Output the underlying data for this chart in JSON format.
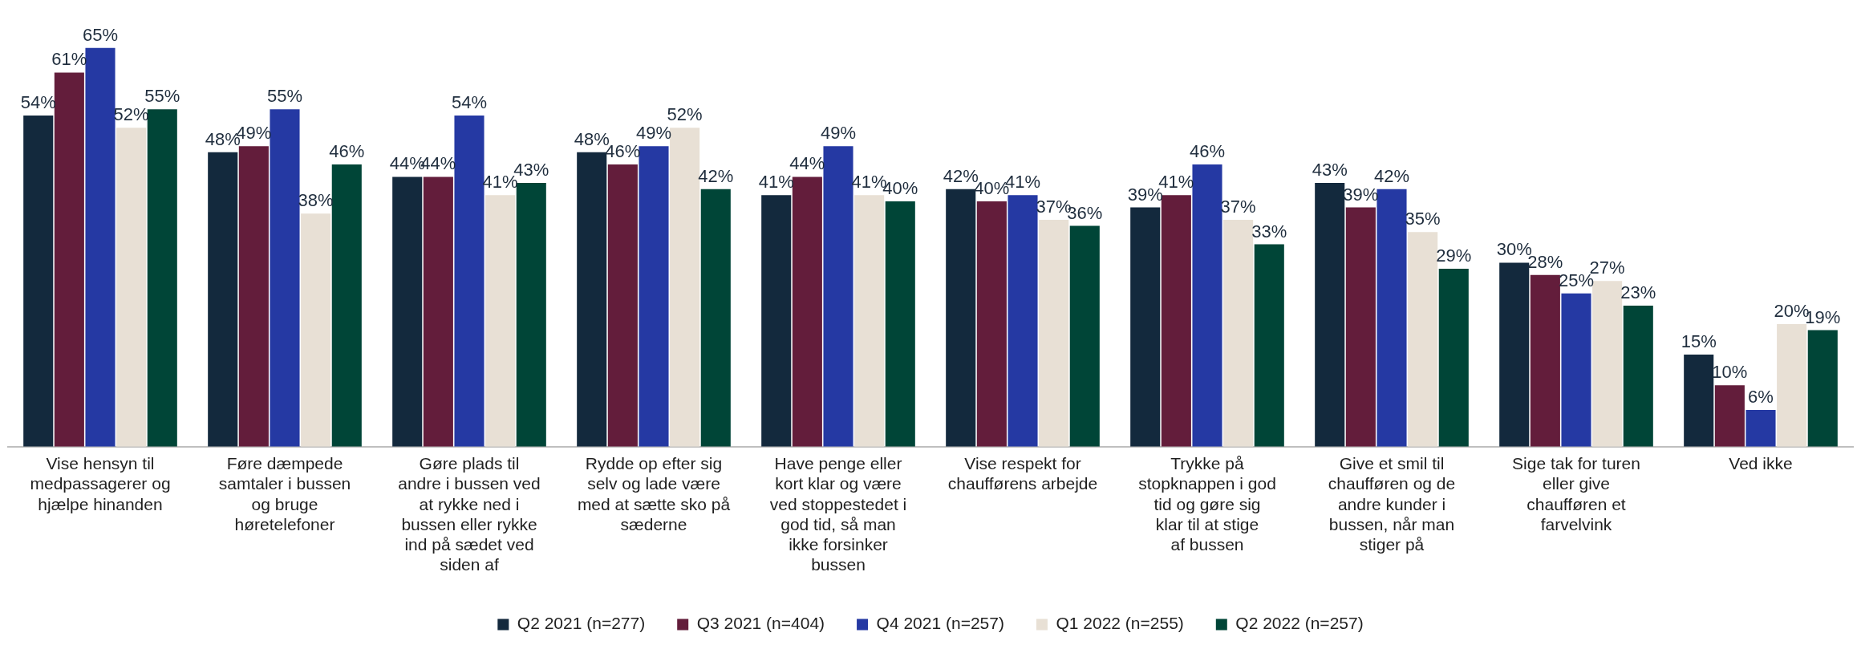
{
  "chart_data": {
    "type": "bar",
    "categories": [
      "Vise hensyn til medpassagerer og hjælpe hinanden",
      "Føre dæmpede samtaler i bussen og bruge høretelefoner",
      "Gøre plads til andre i bussen ved at rykke ned i bussen eller rykke ind på sædet ved siden af",
      "Rydde op efter sig selv og lade være med at sætte sko på sæderne",
      "Have penge eller kort klar og være ved stoppestedet i god tid, så man ikke forsinker bussen",
      "Vise respekt for chaufførens arbejde",
      "Trykke på stopknappen i god tid og gøre sig klar til at stige af bussen",
      "Give et smil til chaufføren og de andre kunder i bussen, når man stiger på",
      "Sige tak for turen eller give chaufføren et farvelvink",
      "Ved ikke"
    ],
    "series": [
      {
        "name": "Q2 2021 (n=277)",
        "color": "#13293d",
        "values": [
          54,
          48,
          44,
          48,
          41,
          42,
          39,
          43,
          30,
          15
        ],
        "value_labels": [
          "54%",
          "48%",
          "44%",
          "48%",
          "41%",
          "42%",
          "39%",
          "43%",
          "30%",
          "15%"
        ]
      },
      {
        "name": "Q3 2021 (n=404)",
        "color": "#631d3b",
        "values": [
          61,
          49,
          44,
          46,
          44,
          40,
          41,
          39,
          28,
          10
        ],
        "value_labels": [
          "61%",
          "49%",
          "44%",
          "46%",
          "44%",
          "40%",
          "41%",
          "39%",
          "28%",
          "10%"
        ]
      },
      {
        "name": "Q4 2021 (n=257)",
        "color": "#2539a3",
        "values": [
          65,
          55,
          54,
          49,
          49,
          41,
          46,
          42,
          25,
          6
        ],
        "value_labels": [
          "65%",
          "55%",
          "54%",
          "49%",
          "49%",
          "41%",
          "46%",
          "42%",
          "25%",
          "6%"
        ]
      },
      {
        "name": "Q1 2022 (n=255)",
        "color": "#e8e0d5",
        "values": [
          52,
          38,
          41,
          52,
          41,
          37,
          37,
          35,
          27,
          20
        ],
        "value_labels": [
          "52%",
          "38%",
          "41%",
          "52%",
          "41%",
          "37%",
          "37%",
          "35%",
          "27%",
          "20%"
        ]
      },
      {
        "name": "Q2 2022 (n=257)",
        "color": "#004537",
        "values": [
          55,
          46,
          43,
          42,
          40,
          36,
          33,
          29,
          23,
          19
        ],
        "value_labels": [
          "55%",
          "46%",
          "43%",
          "42%",
          "40%",
          "36%",
          "33%",
          "29%",
          "23%",
          "19%"
        ]
      }
    ],
    "grid": false,
    "legend": "bottom",
    "tick_labels": "x"
  }
}
